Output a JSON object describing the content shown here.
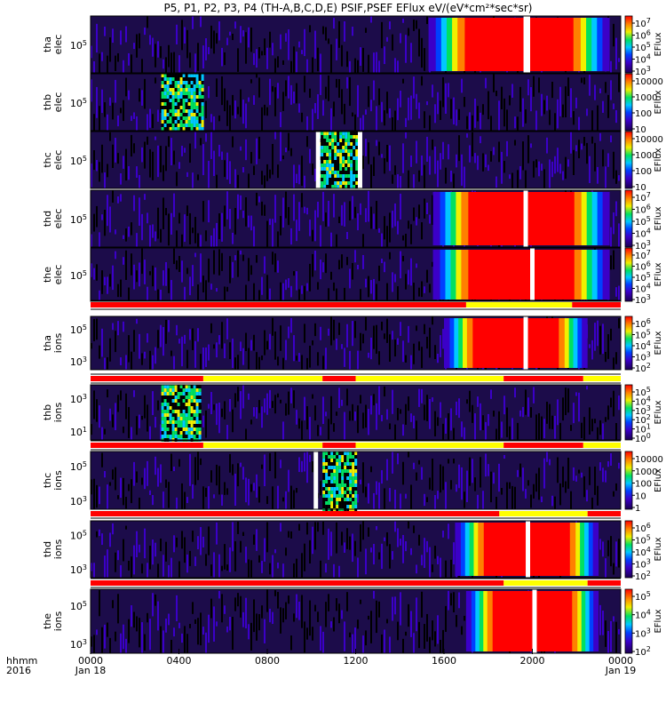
{
  "chart_data": {
    "type": "heatmap",
    "title": "P5, P1, P2, P3, P4 (TH-A,B,C,D,E) PSIF,PSEF EFlux eV/(eV*cm²*sec*sr)",
    "time_axis": {
      "row_label_1": "hhmm",
      "row_label_2": "2016",
      "ticks": [
        {
          "hours": 0,
          "label": "0000",
          "date": "Jan 18"
        },
        {
          "hours": 4,
          "label": "0400",
          "date": ""
        },
        {
          "hours": 8,
          "label": "0800",
          "date": ""
        },
        {
          "hours": 12,
          "label": "1200",
          "date": ""
        },
        {
          "hours": 16,
          "label": "1600",
          "date": ""
        },
        {
          "hours": 20,
          "label": "2000",
          "date": ""
        },
        {
          "hours": 24,
          "label": "0000",
          "date": "Jan 19"
        }
      ],
      "range_hours": [
        0,
        24
      ]
    },
    "colorbar_label": "EFlux",
    "panels": [
      {
        "probe": "tha",
        "species": "elec",
        "y_tick": "10^5",
        "colorbar": [
          "10^7",
          "10^6",
          "10^5",
          "10^4",
          "10^3"
        ],
        "data_gap_hours": [
          [
            19.6,
            19.9
          ]
        ],
        "bright_interval_hours": [
          15.3,
          23.5
        ]
      },
      {
        "probe": "thb",
        "species": "elec",
        "y_tick": "10^5",
        "colorbar": [
          "10000",
          "1000",
          "100",
          "10"
        ],
        "data_gap_hours": [],
        "bright_interval_hours": [
          3.2,
          5.1
        ]
      },
      {
        "probe": "thc",
        "species": "elec",
        "y_tick": "10^5",
        "colorbar": [
          "10000",
          "1000",
          "100",
          "10"
        ],
        "data_gap_hours": [
          [
            10.2,
            10.4
          ],
          [
            12.1,
            12.3
          ]
        ],
        "bright_interval_hours": [
          10.3,
          12.2
        ]
      },
      {
        "probe": "thd",
        "species": "elec",
        "y_tick": "10^5",
        "colorbar": [
          "10^7",
          "10^6",
          "10^5",
          "10^4",
          "10^3"
        ],
        "data_gap_hours": [
          [
            19.6,
            19.8
          ]
        ],
        "bright_interval_hours": [
          15.5,
          23.5
        ]
      },
      {
        "probe": "the",
        "species": "elec",
        "y_tick": "10^5",
        "colorbar": [
          "10^7",
          "10^6",
          "10^5",
          "10^4",
          "10^3"
        ],
        "data_gap_hours": [
          [
            19.9,
            20.1
          ]
        ],
        "bright_interval_hours": [
          15.5,
          23.5
        ]
      },
      {
        "probe": "tha",
        "species": "ions",
        "y_tick_top": "10^5",
        "y_tick_bottom": "10^3",
        "colorbar": [
          "10^6",
          "10^5",
          "10^4",
          "10^3",
          "10^2"
        ],
        "data_gap_hours": [
          [
            19.6,
            19.8
          ]
        ],
        "bright_interval_hours": [
          16,
          22.5
        ]
      },
      {
        "probe": "thb",
        "species": "ions",
        "y_tick_top": "10^3",
        "y_tick_bottom": "10^1",
        "colorbar": [
          "10^5",
          "10^4",
          "10^3",
          "10^2",
          "10^1",
          "10^0"
        ],
        "data_gap_hours": [],
        "bright_interval_hours": [
          3.2,
          5.0
        ]
      },
      {
        "probe": "thc",
        "species": "ions",
        "y_tick_top": "10^5",
        "y_tick_bottom": "10^3",
        "colorbar": [
          "10000",
          "1000",
          "100",
          "10",
          "1"
        ],
        "data_gap_hours": [
          [
            10.1,
            10.3
          ]
        ],
        "bright_interval_hours": [
          10.5,
          12.0
        ]
      },
      {
        "probe": "thd",
        "species": "ions",
        "y_tick_top": "10^5",
        "y_tick_bottom": "10^3",
        "colorbar": [
          "10^6",
          "10^5",
          "10^4",
          "10^3",
          "10^2"
        ],
        "data_gap_hours": [
          [
            19.7,
            19.9
          ]
        ],
        "bright_interval_hours": [
          16.5,
          23.0
        ]
      },
      {
        "probe": "the",
        "species": "ions",
        "y_tick_top": "10^5",
        "y_tick_bottom": "10^3",
        "colorbar": [
          "10^5",
          "10^4",
          "10^3",
          "10^2"
        ],
        "data_gap_hours": [
          [
            20.0,
            20.2
          ]
        ],
        "bright_interval_hours": [
          17.0,
          23.0
        ]
      }
    ],
    "mode_bars": [
      {
        "after_panel": 4,
        "red_hours": [
          [
            0,
            17.0
          ],
          [
            21.8,
            24
          ]
        ],
        "yellow_hours": [
          [
            17.0,
            21.8
          ]
        ]
      },
      {
        "after_panel": 5,
        "red_hours": [
          [
            0,
            5.1
          ],
          [
            10.5,
            12.0
          ],
          [
            18.7,
            22.3
          ]
        ],
        "yellow_hours": [
          [
            5.1,
            10.5
          ],
          [
            12.0,
            18.7
          ],
          [
            22.3,
            24
          ]
        ]
      },
      {
        "after_panel": 6,
        "red_hours": [
          [
            0,
            5.1
          ],
          [
            10.5,
            12.0
          ],
          [
            18.7,
            22.3
          ]
        ],
        "yellow_hours": [
          [
            5.1,
            10.5
          ],
          [
            12.0,
            18.7
          ],
          [
            22.3,
            24
          ]
        ]
      },
      {
        "after_panel": 7,
        "red_hours": [
          [
            0,
            18.5
          ],
          [
            22.5,
            24
          ]
        ],
        "yellow_hours": [
          [
            18.5,
            22.5
          ]
        ]
      },
      {
        "after_panel": 8,
        "red_hours": [
          [
            0,
            18.7
          ],
          [
            22.5,
            24
          ]
        ],
        "yellow_hours": [
          [
            18.7,
            22.5
          ]
        ]
      }
    ]
  }
}
